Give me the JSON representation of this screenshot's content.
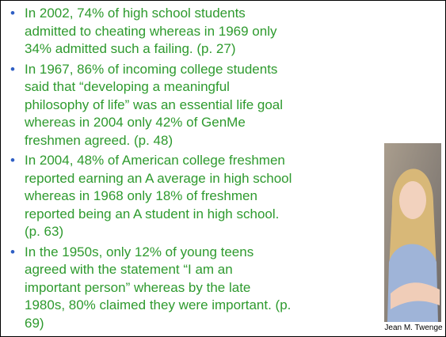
{
  "bullets": [
    {
      "lines": [
        "In 2002, 74% of high school students",
        "admitted to cheating whereas in 1969 only",
        "34% admitted such a failing. (p. 27)"
      ]
    },
    {
      "lines": [
        "In 1967, 86% of incoming college students",
        "said that “developing a meaningful",
        "philosophy of life” was an essential life goal",
        "whereas in 2004 only 42% of GenMe",
        "freshmen agreed. (p. 48)"
      ]
    },
    {
      "lines": [
        "In 2004, 48% of American college freshmen",
        "reported earning an A average in high school",
        "whereas in 1968 only 18% of freshmen",
        "reported being an A student in high school.",
        "(p. 63)"
      ]
    },
    {
      "lines": [
        "In the 1950s, only 12% of young teens",
        "agreed with the statement “I am an",
        "important person” whereas by the late",
        "1980s, 80% claimed they were important. (p.",
        "69)"
      ]
    }
  ],
  "photo": {
    "caption": "Jean M. Twenge"
  }
}
